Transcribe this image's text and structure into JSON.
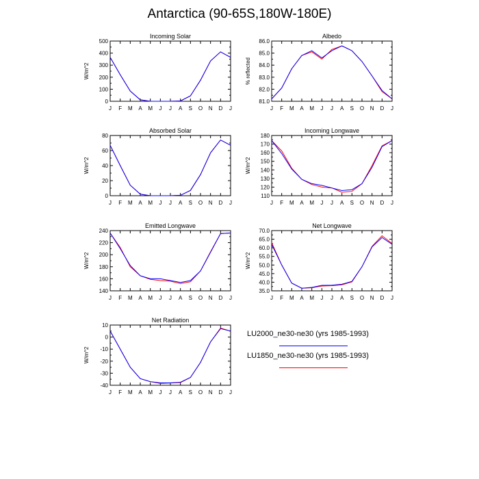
{
  "title": "Antarctica (90-65S,180W-180E)",
  "colors": {
    "lu2000": "#0000ff",
    "lu1850": "#ff0000",
    "axis": "#000000"
  },
  "legend": [
    {
      "label": "LU2000_ne30-ne30 (yrs 1985-1993)",
      "color": "#0000ff"
    },
    {
      "label": "LU1850_ne30-ne30 (yrs 1985-1993)",
      "color": "#ff0000"
    }
  ],
  "chart_data": [
    {
      "type": "line",
      "title": "Incoming Solar",
      "ylabel": "W/m^2",
      "categories": [
        "J",
        "F",
        "M",
        "A",
        "M",
        "J",
        "J",
        "A",
        "S",
        "O",
        "N",
        "D",
        "J"
      ],
      "ylim": [
        0,
        500
      ],
      "yticks": [
        "0",
        "100",
        "200",
        "300",
        "400",
        "500"
      ],
      "series": [
        {
          "name": "LU2000_ne30-ne30 (yrs 1985-1993)",
          "color": "#0000ff",
          "values": [
            365,
            220,
            85,
            12,
            0,
            0,
            0,
            3,
            45,
            175,
            335,
            410,
            365
          ]
        },
        {
          "name": "LU1850_ne30-ne30 (yrs 1985-1993)",
          "color": "#ff0000",
          "values": [
            365,
            220,
            85,
            12,
            0,
            0,
            0,
            3,
            45,
            175,
            335,
            410,
            365
          ]
        }
      ]
    },
    {
      "type": "line",
      "title": "Albedo",
      "ylabel": "% reflected",
      "categories": [
        "J",
        "F",
        "M",
        "A",
        "M",
        "J",
        "J",
        "A",
        "S",
        "O",
        "N",
        "D",
        "J"
      ],
      "ylim": [
        81.0,
        86.0
      ],
      "yticks": [
        "81.0",
        "82.0",
        "83.0",
        "84.0",
        "85.0",
        "86.0"
      ],
      "series": [
        {
          "name": "LU2000_ne30-ne30 (yrs 1985-1993)",
          "color": "#0000ff",
          "values": [
            81.2,
            82.1,
            83.7,
            84.8,
            85.2,
            84.6,
            85.2,
            85.6,
            85.2,
            84.3,
            83.1,
            81.9,
            81.2
          ]
        },
        {
          "name": "LU1850_ne30-ne30 (yrs 1985-1993)",
          "color": "#ff0000",
          "values": [
            81.2,
            82.1,
            83.7,
            84.8,
            85.1,
            84.5,
            85.3,
            85.6,
            85.2,
            84.3,
            83.1,
            81.8,
            81.2
          ]
        }
      ]
    },
    {
      "type": "line",
      "title": "Absorbed Solar",
      "ylabel": "W/m^2",
      "categories": [
        "J",
        "F",
        "M",
        "A",
        "M",
        "J",
        "J",
        "A",
        "S",
        "O",
        "N",
        "D",
        "J"
      ],
      "ylim": [
        0,
        80
      ],
      "yticks": [
        "0",
        "20",
        "40",
        "60",
        "80"
      ],
      "series": [
        {
          "name": "LU2000_ne30-ne30 (yrs 1985-1993)",
          "color": "#0000ff",
          "values": [
            67,
            40,
            14,
            2,
            0,
            0,
            0,
            0.5,
            7,
            28,
            57,
            74,
            67
          ]
        },
        {
          "name": "LU1850_ne30-ne30 (yrs 1985-1993)",
          "color": "#ff0000",
          "values": [
            67,
            40,
            14,
            2,
            0,
            0,
            0,
            0.5,
            7,
            28,
            57,
            74,
            67
          ]
        }
      ]
    },
    {
      "type": "line",
      "title": "Incoming Longwave",
      "ylabel": "W/m^2",
      "categories": [
        "J",
        "F",
        "M",
        "A",
        "M",
        "J",
        "J",
        "A",
        "S",
        "O",
        "N",
        "D",
        "J"
      ],
      "ylim": [
        110,
        180
      ],
      "yticks": [
        "110",
        "120",
        "130",
        "140",
        "150",
        "160",
        "170",
        "180"
      ],
      "series": [
        {
          "name": "LU2000_ne30-ne30 (yrs 1985-1993)",
          "color": "#0000ff",
          "values": [
            174,
            159,
            141,
            129,
            124,
            122,
            119,
            116,
            117,
            124,
            143,
            167,
            174
          ]
        },
        {
          "name": "LU1850_ne30-ne30 (yrs 1985-1993)",
          "color": "#ff0000",
          "values": [
            174,
            162,
            142,
            129,
            123,
            120,
            119,
            114,
            115,
            124,
            145,
            168,
            174
          ]
        }
      ]
    },
    {
      "type": "line",
      "title": "Emitted Longwave",
      "ylabel": "W/m^2",
      "categories": [
        "J",
        "F",
        "M",
        "A",
        "M",
        "J",
        "J",
        "A",
        "S",
        "O",
        "N",
        "D",
        "J"
      ],
      "ylim": [
        140,
        240
      ],
      "yticks": [
        "140",
        "160",
        "180",
        "200",
        "220",
        "240"
      ],
      "series": [
        {
          "name": "LU2000_ne30-ne30 (yrs 1985-1993)",
          "color": "#0000ff",
          "values": [
            236,
            210,
            182,
            165,
            160,
            160,
            157,
            154,
            157,
            173,
            204,
            235,
            236
          ]
        },
        {
          "name": "LU1850_ne30-ne30 (yrs 1985-1993)",
          "color": "#ff0000",
          "values": [
            236,
            212,
            180,
            165,
            159,
            157,
            156,
            152,
            155,
            173,
            205,
            235,
            236
          ]
        }
      ]
    },
    {
      "type": "line",
      "title": "Net Longwave",
      "ylabel": "W/m^2",
      "categories": [
        "J",
        "F",
        "M",
        "A",
        "M",
        "J",
        "J",
        "A",
        "S",
        "O",
        "N",
        "D",
        "J"
      ],
      "ylim": [
        35.0,
        70.0
      ],
      "yticks": [
        "35.0",
        "40.0",
        "45.0",
        "50.0",
        "55.0",
        "60.0",
        "65.0",
        "70.0"
      ],
      "series": [
        {
          "name": "LU2000_ne30-ne30 (yrs 1985-1993)",
          "color": "#0000ff",
          "values": [
            62,
            50,
            39.5,
            36.5,
            37,
            38.2,
            38.3,
            38.8,
            40.5,
            49,
            60.5,
            66,
            62
          ]
        },
        {
          "name": "LU1850_ne30-ne30 (yrs 1985-1993)",
          "color": "#ff0000",
          "values": [
            63,
            50,
            39.5,
            36.5,
            36.8,
            37.8,
            38.0,
            38.5,
            40.2,
            49,
            60.8,
            67,
            62.5
          ]
        }
      ]
    },
    {
      "type": "line",
      "title": "Net Radiation",
      "ylabel": "W/m^2",
      "categories": [
        "J",
        "F",
        "M",
        "A",
        "M",
        "J",
        "J",
        "A",
        "S",
        "O",
        "N",
        "D",
        "J"
      ],
      "ylim": [
        -40,
        10
      ],
      "yticks": [
        "-40",
        "-30",
        "-20",
        "-10",
        "0",
        "10"
      ],
      "series": [
        {
          "name": "LU2000_ne30-ne30 (yrs 1985-1993)",
          "color": "#0000ff",
          "values": [
            5,
            -10,
            -25,
            -34.5,
            -37,
            -38,
            -38,
            -37.5,
            -33.5,
            -21,
            -4,
            7,
            5
          ]
        },
        {
          "name": "LU1850_ne30-ne30 (yrs 1985-1993)",
          "color": "#ff0000",
          "values": [
            5,
            -10,
            -25,
            -34.5,
            -37,
            -38.5,
            -38.2,
            -37.8,
            -33.5,
            -21,
            -4,
            7.5,
            5
          ]
        }
      ]
    }
  ]
}
